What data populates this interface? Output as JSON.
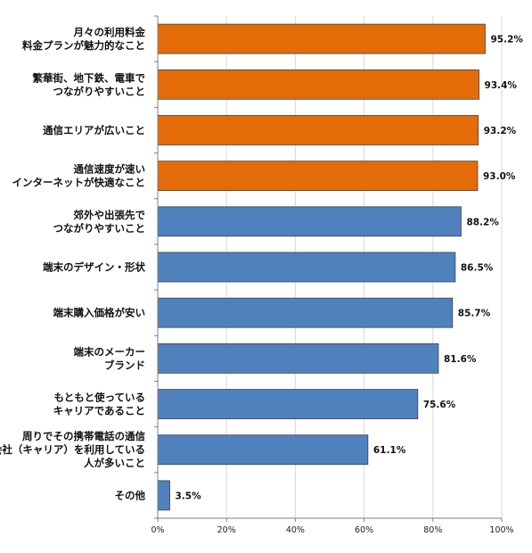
{
  "chart_data": {
    "type": "bar",
    "orientation": "horizontal",
    "categories": [
      [
        "月々の利用料金",
        "料金プランが魅力的なこと"
      ],
      [
        "繁華街、地下鉄、電車で",
        "つながりやすいこと"
      ],
      [
        "通信エリアが広いこと"
      ],
      [
        "通信速度が速い",
        "インターネットが快適なこと"
      ],
      [
        "郊外や出張先で",
        "つながりやすいこと"
      ],
      [
        "端末のデザイン・形状"
      ],
      [
        "端末購入価格が安い"
      ],
      [
        "端末のメーカー",
        "ブランド"
      ],
      [
        "もともと使っている",
        "キャリアであること"
      ],
      [
        "周りでその携帯電話の通信",
        "会社（キャリア）を利用している",
        "人が多いこと"
      ],
      [
        "その他"
      ]
    ],
    "values": [
      95.2,
      93.4,
      93.2,
      93.0,
      88.2,
      86.5,
      85.7,
      81.6,
      75.6,
      61.1,
      3.5
    ],
    "value_labels": [
      "95.2%",
      "93.4%",
      "93.2%",
      "93.0%",
      "88.2%",
      "86.5%",
      "85.7%",
      "81.6%",
      "75.6%",
      "61.1%",
      "3.5%"
    ],
    "bar_colors": [
      "#E36C09",
      "#E36C09",
      "#E36C09",
      "#E36C09",
      "#4F81BD",
      "#4F81BD",
      "#4F81BD",
      "#4F81BD",
      "#4F81BD",
      "#4F81BD",
      "#4F81BD"
    ],
    "xlim": [
      0,
      100
    ],
    "x_ticks": [
      0,
      20,
      40,
      60,
      80,
      100
    ],
    "x_tick_labels": [
      "0%",
      "20%",
      "40%",
      "60%",
      "80%",
      "100%"
    ],
    "grid": true,
    "grid_color": "#d9d9d9",
    "bar_border_color": "#404040",
    "axis_color": "#7f7f7f"
  }
}
